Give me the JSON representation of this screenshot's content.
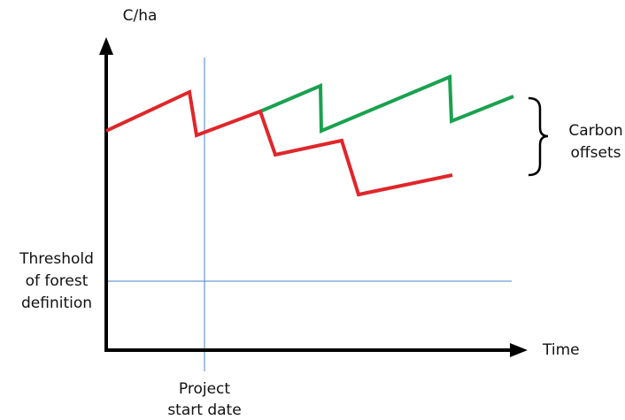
{
  "axes": {
    "y_label": "C/ha",
    "x_label": "Time"
  },
  "labels": {
    "threshold_line1": "Threshold",
    "threshold_line2": "of forest",
    "threshold_line3": "definition",
    "project_line1": "Project",
    "project_line2": "start date",
    "offsets_line1": "Carbon",
    "offsets_line2": "offsets"
  },
  "colors": {
    "axis": "#000000",
    "reference_lines": "#4a86c8",
    "baseline": "#e0262a",
    "project": "#1aa14f",
    "brace": "#000000"
  }
}
